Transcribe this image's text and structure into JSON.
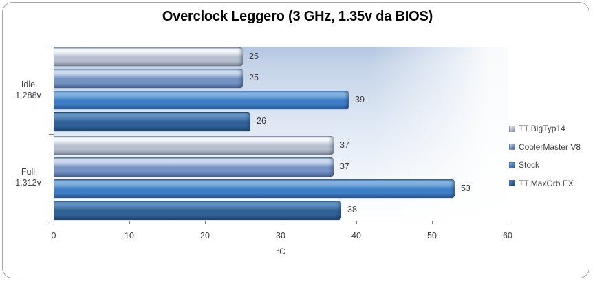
{
  "chart_data": {
    "type": "bar",
    "orientation": "horizontal",
    "title": "Overclock Leggero (3 GHz, 1.35v da BIOS)",
    "xlabel": "°C",
    "xlim": [
      0,
      60
    ],
    "x_ticks": [
      0,
      10,
      20,
      30,
      40,
      50,
      60
    ],
    "grid": false,
    "legend_position": "right",
    "categories": [
      {
        "label_line1": "Idle",
        "label_line2": "1.288v"
      },
      {
        "label_line1": "Full",
        "label_line2": "1.312v"
      }
    ],
    "series": [
      {
        "name": "TT BigTyp14",
        "values": [
          25,
          37
        ],
        "color": "#b6bfce",
        "color_highlight": "#f2f5f9",
        "color_dark": "#818b9c"
      },
      {
        "name": "CoolerMaster V8",
        "values": [
          25,
          37
        ],
        "color": "#7492c2",
        "color_highlight": "#ccdaf0",
        "color_dark": "#4c679a"
      },
      {
        "name": "Stock",
        "values": [
          39,
          53
        ],
        "color": "#3f7ec5",
        "color_highlight": "#83b2e0",
        "color_dark": "#2a5d9b"
      },
      {
        "name": "TT MaxOrb EX",
        "values": [
          26,
          38
        ],
        "color": "#306197",
        "color_highlight": "#6191c1",
        "color_dark": "#1f4973"
      }
    ],
    "plot_background_top": "#b3c6e0",
    "plot_background_bottom": "#ffffff",
    "axis_color": "#808080",
    "text_color": "#3a3a3a"
  }
}
